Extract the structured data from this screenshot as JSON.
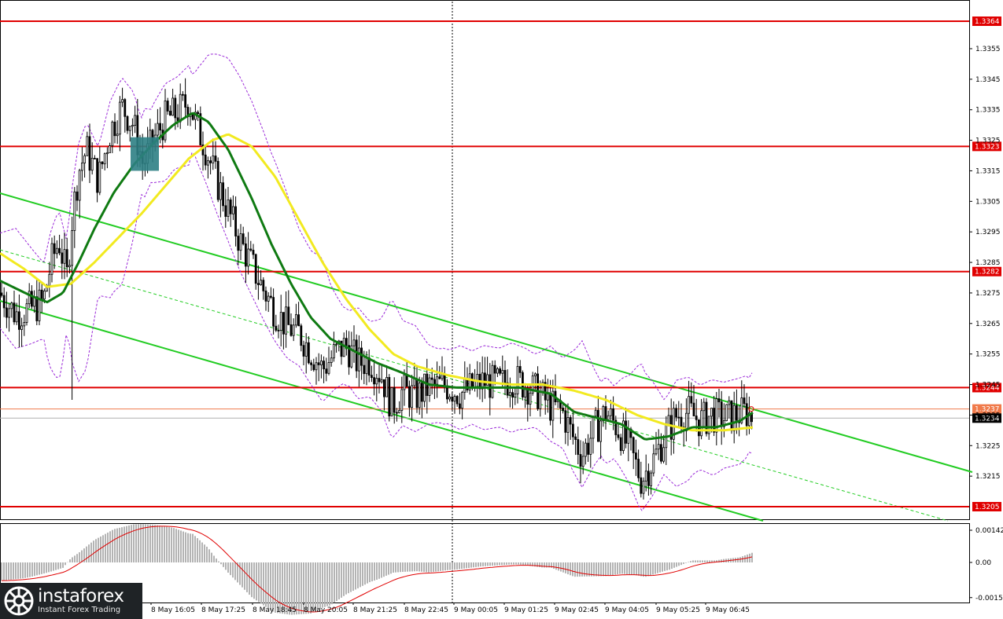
{
  "chart_data": {
    "type": "candlestick",
    "title": "",
    "price_axis": {
      "min": 1.32,
      "max": 1.3371,
      "ticks": [
        "1.3355",
        "1.3345",
        "1.3335",
        "1.3325",
        "1.3315",
        "1.3305",
        "1.3295",
        "1.3285",
        "1.3275",
        "1.3265",
        "1.3255",
        "1.3245",
        "1.3235",
        "1.3225",
        "1.3215"
      ]
    },
    "levels": [
      {
        "label": "1.3364",
        "value": 1.3364,
        "color": "#e00000"
      },
      {
        "label": "1.3323",
        "value": 1.3323,
        "color": "#e00000"
      },
      {
        "label": "1.3282",
        "value": 1.3282,
        "color": "#e00000"
      },
      {
        "label": "1.3244",
        "value": 1.3244,
        "color": "#e00000"
      },
      {
        "label": "1.3205",
        "value": 1.3205,
        "color": "#e00000"
      }
    ],
    "ask_level": {
      "label": "1.3237",
      "value": 1.3237,
      "color": "#f07a4a"
    },
    "last_price": {
      "label": "1.3234",
      "value": 1.3234,
      "color": "#000000"
    },
    "time_labels": [
      "8 May 16:05",
      "8 May 17:25",
      "8 May 18:45",
      "8 May 20:05",
      "8 May 21:25",
      "8 May 22:45",
      "9 May 00:05",
      "9 May 01:25",
      "9 May 02:45",
      "9 May 04:05",
      "9 May 05:25",
      "9 May 06:45"
    ],
    "separator_label": "9 May 00:05",
    "colors": {
      "candle": "#000000",
      "ma_fast": "#0f7a12",
      "ma_slow": "#f2ea20",
      "bands": "#9a28d8",
      "channel": "#22cc22",
      "signal_box": "#2d7f84",
      "osc_hist": "#b3b3b3",
      "osc_signal": "#e00000"
    },
    "oscillator": {
      "min": -0.00155,
      "max": 0.00142,
      "ticks": [
        "0.00142",
        "0.00",
        "-0.00155"
      ]
    },
    "close_series": [
      {
        "t": 0,
        "v": 1.3275
      },
      {
        "t": 20,
        "v": 1.3268
      },
      {
        "t": 40,
        "v": 1.327
      },
      {
        "t": 55,
        "v": 1.3272
      },
      {
        "t": 65,
        "v": 1.3285
      },
      {
        "t": 75,
        "v": 1.3292
      },
      {
        "t": 85,
        "v": 1.328
      },
      {
        "t": 92,
        "v": 1.33
      },
      {
        "t": 100,
        "v": 1.3315
      },
      {
        "t": 110,
        "v": 1.3322
      },
      {
        "t": 125,
        "v": 1.3312
      },
      {
        "t": 140,
        "v": 1.3328
      },
      {
        "t": 155,
        "v": 1.3336
      },
      {
        "t": 170,
        "v": 1.333
      },
      {
        "t": 182,
        "v": 1.3317
      },
      {
        "t": 195,
        "v": 1.3325
      },
      {
        "t": 210,
        "v": 1.3332
      },
      {
        "t": 225,
        "v": 1.3334
      },
      {
        "t": 240,
        "v": 1.3338
      },
      {
        "t": 250,
        "v": 1.333
      },
      {
        "t": 262,
        "v": 1.3322
      },
      {
        "t": 275,
        "v": 1.3312
      },
      {
        "t": 290,
        "v": 1.3302
      },
      {
        "t": 305,
        "v": 1.3292
      },
      {
        "t": 320,
        "v": 1.3284
      },
      {
        "t": 335,
        "v": 1.3276
      },
      {
        "t": 350,
        "v": 1.3269
      },
      {
        "t": 365,
        "v": 1.3264
      },
      {
        "t": 380,
        "v": 1.3262
      },
      {
        "t": 395,
        "v": 1.3256
      },
      {
        "t": 410,
        "v": 1.325
      },
      {
        "t": 425,
        "v": 1.3255
      },
      {
        "t": 440,
        "v": 1.3258
      },
      {
        "t": 455,
        "v": 1.3252
      },
      {
        "t": 470,
        "v": 1.3253
      },
      {
        "t": 485,
        "v": 1.3248
      },
      {
        "t": 498,
        "v": 1.3238
      },
      {
        "t": 512,
        "v": 1.3243
      },
      {
        "t": 528,
        "v": 1.3241
      },
      {
        "t": 545,
        "v": 1.3244
      },
      {
        "t": 565,
        "v": 1.3245
      },
      {
        "t": 585,
        "v": 1.3242
      },
      {
        "t": 600,
        "v": 1.3244
      },
      {
        "t": 615,
        "v": 1.3246
      },
      {
        "t": 635,
        "v": 1.3245
      },
      {
        "t": 650,
        "v": 1.3247
      },
      {
        "t": 668,
        "v": 1.3245
      },
      {
        "t": 685,
        "v": 1.3242
      },
      {
        "t": 700,
        "v": 1.3238
      },
      {
        "t": 715,
        "v": 1.3236
      },
      {
        "t": 728,
        "v": 1.3228
      },
      {
        "t": 740,
        "v": 1.3222
      },
      {
        "t": 755,
        "v": 1.323
      },
      {
        "t": 770,
        "v": 1.3236
      },
      {
        "t": 785,
        "v": 1.3231
      },
      {
        "t": 800,
        "v": 1.3224
      },
      {
        "t": 815,
        "v": 1.3214
      },
      {
        "t": 830,
        "v": 1.322
      },
      {
        "t": 845,
        "v": 1.3228
      },
      {
        "t": 860,
        "v": 1.3235
      },
      {
        "t": 875,
        "v": 1.3236
      },
      {
        "t": 890,
        "v": 1.3233
      },
      {
        "t": 905,
        "v": 1.3235
      },
      {
        "t": 920,
        "v": 1.3234
      },
      {
        "t": 935,
        "v": 1.3235
      },
      {
        "t": 948,
        "v": 1.3236
      },
      {
        "t": 958,
        "v": 1.3234
      }
    ],
    "ma_fast_series": [
      {
        "t": 0,
        "v": 1.3279
      },
      {
        "t": 40,
        "v": 1.3274
      },
      {
        "t": 60,
        "v": 1.3272
      },
      {
        "t": 80,
        "v": 1.3275
      },
      {
        "t": 100,
        "v": 1.3285
      },
      {
        "t": 120,
        "v": 1.3296
      },
      {
        "t": 145,
        "v": 1.3308
      },
      {
        "t": 170,
        "v": 1.3317
      },
      {
        "t": 195,
        "v": 1.3324
      },
      {
        "t": 220,
        "v": 1.333
      },
      {
        "t": 245,
        "v": 1.3334
      },
      {
        "t": 265,
        "v": 1.3331
      },
      {
        "t": 290,
        "v": 1.3322
      },
      {
        "t": 320,
        "v": 1.3306
      },
      {
        "t": 345,
        "v": 1.3291
      },
      {
        "t": 370,
        "v": 1.3278
      },
      {
        "t": 395,
        "v": 1.3267
      },
      {
        "t": 420,
        "v": 1.326
      },
      {
        "t": 450,
        "v": 1.3256
      },
      {
        "t": 480,
        "v": 1.3252
      },
      {
        "t": 510,
        "v": 1.3249
      },
      {
        "t": 545,
        "v": 1.3245
      },
      {
        "t": 580,
        "v": 1.3244
      },
      {
        "t": 620,
        "v": 1.3244
      },
      {
        "t": 660,
        "v": 1.3244
      },
      {
        "t": 700,
        "v": 1.3242
      },
      {
        "t": 730,
        "v": 1.3236
      },
      {
        "t": 760,
        "v": 1.3234
      },
      {
        "t": 790,
        "v": 1.3232
      },
      {
        "t": 820,
        "v": 1.3227
      },
      {
        "t": 850,
        "v": 1.3228
      },
      {
        "t": 880,
        "v": 1.3231
      },
      {
        "t": 910,
        "v": 1.3231
      },
      {
        "t": 940,
        "v": 1.3233
      },
      {
        "t": 958,
        "v": 1.3236
      }
    ],
    "ma_slow_series": [
      {
        "t": 0,
        "v": 1.3288
      },
      {
        "t": 30,
        "v": 1.3283
      },
      {
        "t": 60,
        "v": 1.3277
      },
      {
        "t": 90,
        "v": 1.3278
      },
      {
        "t": 120,
        "v": 1.3285
      },
      {
        "t": 150,
        "v": 1.3293
      },
      {
        "t": 180,
        "v": 1.3301
      },
      {
        "t": 210,
        "v": 1.331
      },
      {
        "t": 240,
        "v": 1.3319
      },
      {
        "t": 270,
        "v": 1.3325
      },
      {
        "t": 290,
        "v": 1.3327
      },
      {
        "t": 320,
        "v": 1.3323
      },
      {
        "t": 350,
        "v": 1.3313
      },
      {
        "t": 380,
        "v": 1.3299
      },
      {
        "t": 410,
        "v": 1.3285
      },
      {
        "t": 440,
        "v": 1.3273
      },
      {
        "t": 470,
        "v": 1.3263
      },
      {
        "t": 500,
        "v": 1.3255
      },
      {
        "t": 530,
        "v": 1.3251
      },
      {
        "t": 570,
        "v": 1.3248
      },
      {
        "t": 610,
        "v": 1.3246
      },
      {
        "t": 650,
        "v": 1.3245
      },
      {
        "t": 690,
        "v": 1.3245
      },
      {
        "t": 730,
        "v": 1.3243
      },
      {
        "t": 770,
        "v": 1.324
      },
      {
        "t": 810,
        "v": 1.3235
      },
      {
        "t": 845,
        "v": 1.3232
      },
      {
        "t": 880,
        "v": 1.323
      },
      {
        "t": 920,
        "v": 1.323
      },
      {
        "t": 958,
        "v": 1.3231
      }
    ]
  },
  "brand": {
    "name": "instaforex",
    "tagline": "Instant Forex Trading"
  }
}
